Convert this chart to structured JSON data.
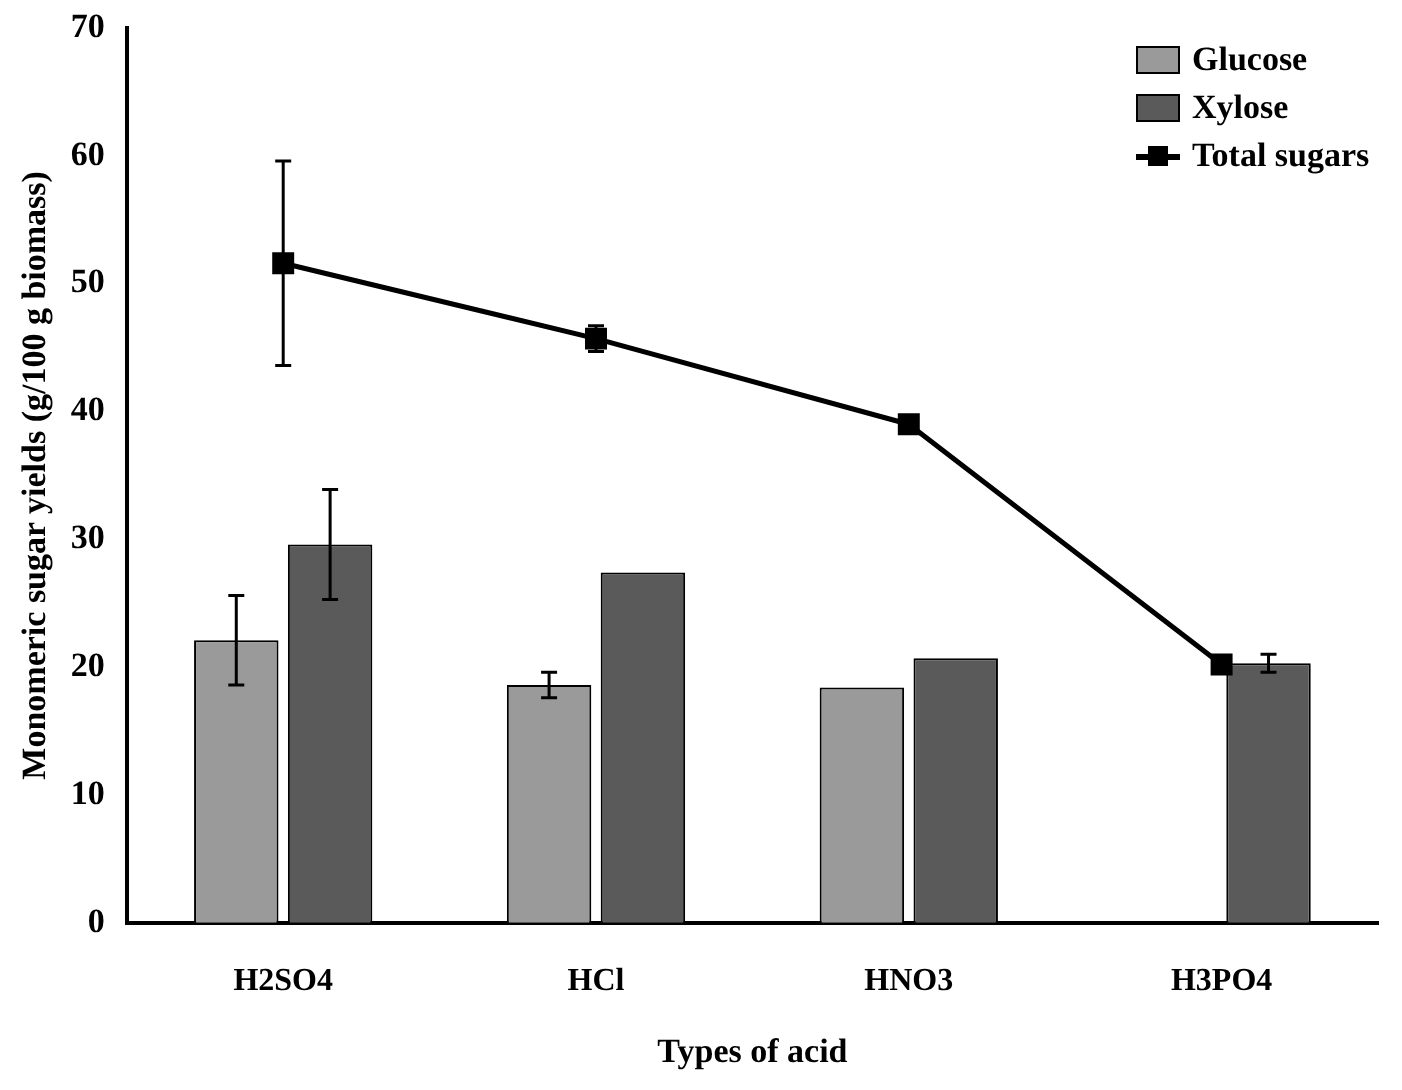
{
  "chart_data": {
    "type": "bar",
    "xlabel": "Types of acid",
    "ylabel": "Monomeric sugar yields (g/100 g biomass)",
    "categories": [
      "H2SO4",
      "HCl",
      "HNO3",
      "H3PO4"
    ],
    "series": [
      {
        "name": "Glucose",
        "color": "#9a9a9a",
        "values": [
          22.1,
          18.6,
          18.4,
          0
        ],
        "errors": [
          3.5,
          1,
          null,
          null
        ]
      },
      {
        "name": "Xylose",
        "color": "#5a5a5a",
        "values": [
          29.6,
          27.4,
          20.7,
          20.3
        ],
        "errors": [
          4.3,
          null,
          null,
          0.7
        ]
      },
      {
        "name": "Total sugars",
        "type": "line",
        "color": "#000000",
        "marker": "square",
        "values": [
          51.6,
          45.7,
          39,
          20.2
        ],
        "errors": [
          8,
          1,
          null,
          null
        ]
      }
    ],
    "ylim": [
      0,
      70
    ],
    "yticks": [
      0,
      10,
      20,
      30,
      40,
      50,
      60,
      70
    ],
    "grid": false,
    "legend": "top right"
  }
}
